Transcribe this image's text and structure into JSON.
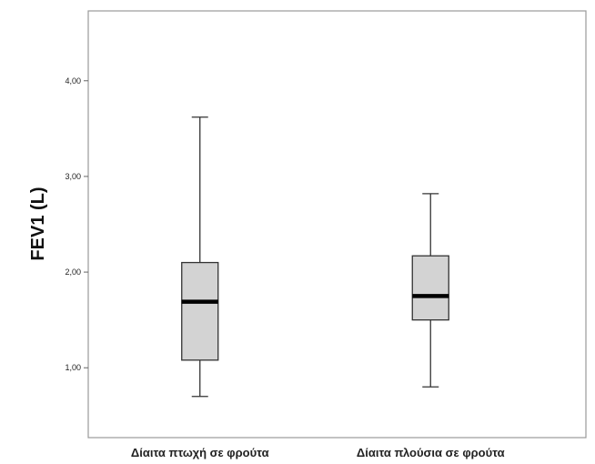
{
  "chart_data": {
    "type": "boxplot",
    "ylabel": "FEV1 (L)",
    "ylim": [
      0.27,
      4.73
    ],
    "yticks": [
      1.0,
      2.0,
      3.0,
      4.0
    ],
    "ytick_labels": [
      "1,00",
      "2,00",
      "3,00",
      "4,00"
    ],
    "categories": [
      "Δίαιτα πτωχή σε φρούτα",
      "Δίαιτα πλούσια σε φρούτα"
    ],
    "boxes": [
      {
        "min": 0.7,
        "q1": 1.08,
        "median": 1.69,
        "q3": 2.1,
        "max": 3.62
      },
      {
        "min": 0.8,
        "q1": 1.5,
        "median": 1.75,
        "q3": 2.17,
        "max": 2.82
      }
    ],
    "grid": false,
    "box_fill": "#d3d3d3",
    "median_color": "#000000"
  }
}
